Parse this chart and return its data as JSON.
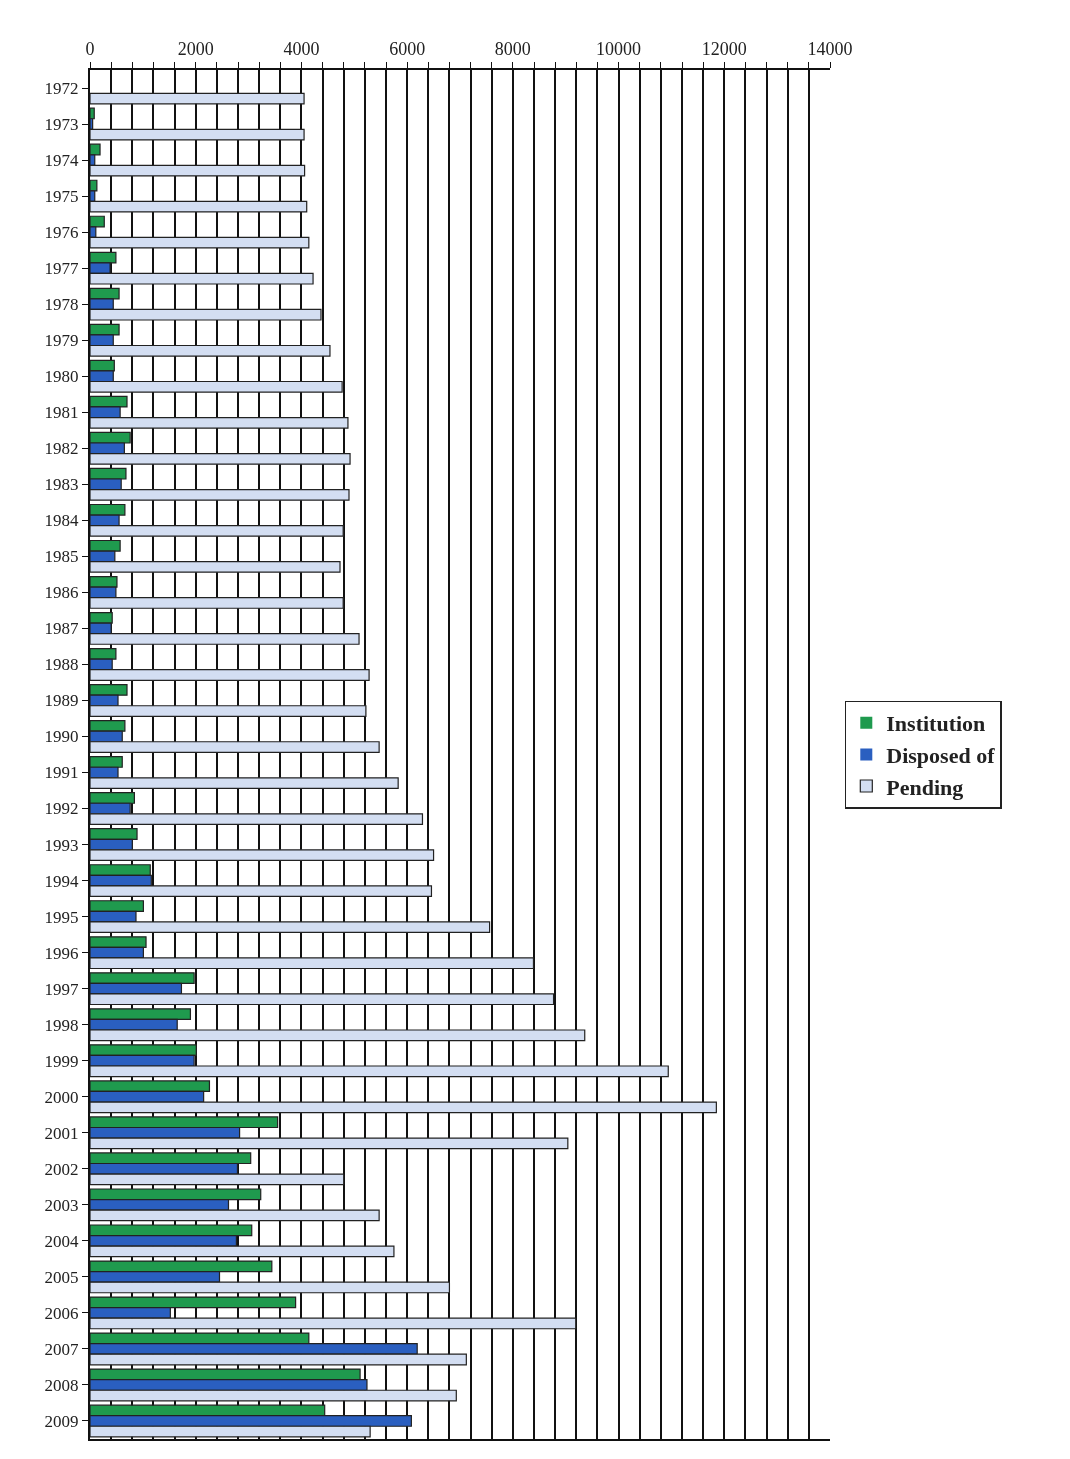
{
  "chart_data": {
    "type": "bar",
    "orientation": "horizontal",
    "categories": [
      "1972",
      "1973",
      "1974",
      "1975",
      "1976",
      "1977",
      "1978",
      "1979",
      "1980",
      "1981",
      "1982",
      "1983",
      "1984",
      "1985",
      "1986",
      "1987",
      "1988",
      "1989",
      "1990",
      "1991",
      "1992",
      "1993",
      "1994",
      "1995",
      "1996",
      "1997",
      "1998",
      "1999",
      "2000",
      "2001",
      "2002",
      "2003",
      "2004",
      "2005",
      "2006",
      "2007",
      "2008",
      "2009"
    ],
    "series": [
      {
        "name": "Institution",
        "color": "#1f9a4e",
        "values": [
          0,
          80,
          190,
          130,
          270,
          490,
          550,
          550,
          460,
          700,
          760,
          680,
          660,
          570,
          510,
          420,
          490,
          700,
          660,
          610,
          840,
          890,
          1140,
          1010,
          1060,
          1970,
          1900,
          2010,
          2260,
          3550,
          3040,
          3230,
          3060,
          3440,
          3890,
          4140,
          5110,
          4440
        ]
      },
      {
        "name": "Disposed of",
        "color": "#2a5fc0",
        "values": [
          0,
          50,
          90,
          90,
          110,
          380,
          440,
          440,
          440,
          570,
          650,
          590,
          550,
          470,
          490,
          400,
          420,
          530,
          610,
          530,
          760,
          800,
          1160,
          870,
          1010,
          1730,
          1650,
          1970,
          2150,
          2830,
          2790,
          2620,
          2770,
          2450,
          1520,
          6190,
          5240,
          6080
        ]
      },
      {
        "name": "Pending",
        "color": "#d3def2",
        "values": [
          4050,
          4050,
          4060,
          4100,
          4140,
          4220,
          4370,
          4540,
          4770,
          4880,
          4920,
          4900,
          4790,
          4730,
          4790,
          5090,
          5280,
          5220,
          5470,
          5830,
          6290,
          6500,
          6460,
          7560,
          8390,
          8770,
          9360,
          10940,
          11850,
          9040,
          4800,
          5470,
          5750,
          6800,
          9190,
          7120,
          6930,
          5300
        ]
      }
    ],
    "xlim": [
      0,
      14000
    ],
    "xticks": [
      0,
      {
        "value": 400,
        "label": null
      },
      {
        "value": 800,
        "label": null
      },
      {
        "value": 1200,
        "label": null
      },
      {
        "value": 1600,
        "label": null
      },
      2000,
      {
        "value": 2400,
        "label": null
      },
      {
        "value": 2800,
        "label": null
      },
      {
        "value": 3200,
        "label": null
      },
      {
        "value": 3600,
        "label": null
      },
      4000,
      {
        "value": 4400,
        "label": null
      },
      {
        "value": 4800,
        "label": null
      },
      {
        "value": 5200,
        "label": null
      },
      {
        "value": 5600,
        "label": null
      },
      6000,
      {
        "value": 6400,
        "label": null
      },
      {
        "value": 6800,
        "label": null
      },
      {
        "value": 7200,
        "label": null
      },
      {
        "value": 7600,
        "label": null
      },
      8000,
      {
        "value": 8400,
        "label": null
      },
      {
        "value": 8800,
        "label": null
      },
      {
        "value": 9200,
        "label": null
      },
      {
        "value": 9600,
        "label": null
      },
      10000,
      {
        "value": 10400,
        "label": null
      },
      {
        "value": 10800,
        "label": null
      },
      {
        "value": 11200,
        "label": null
      },
      {
        "value": 11600,
        "label": null
      },
      12000,
      {
        "value": 12400,
        "label": null
      },
      {
        "value": 12800,
        "label": null
      },
      {
        "value": 13200,
        "label": null
      },
      {
        "value": 13600,
        "label": null
      },
      14000
    ],
    "grid": "x",
    "legend": "right"
  }
}
